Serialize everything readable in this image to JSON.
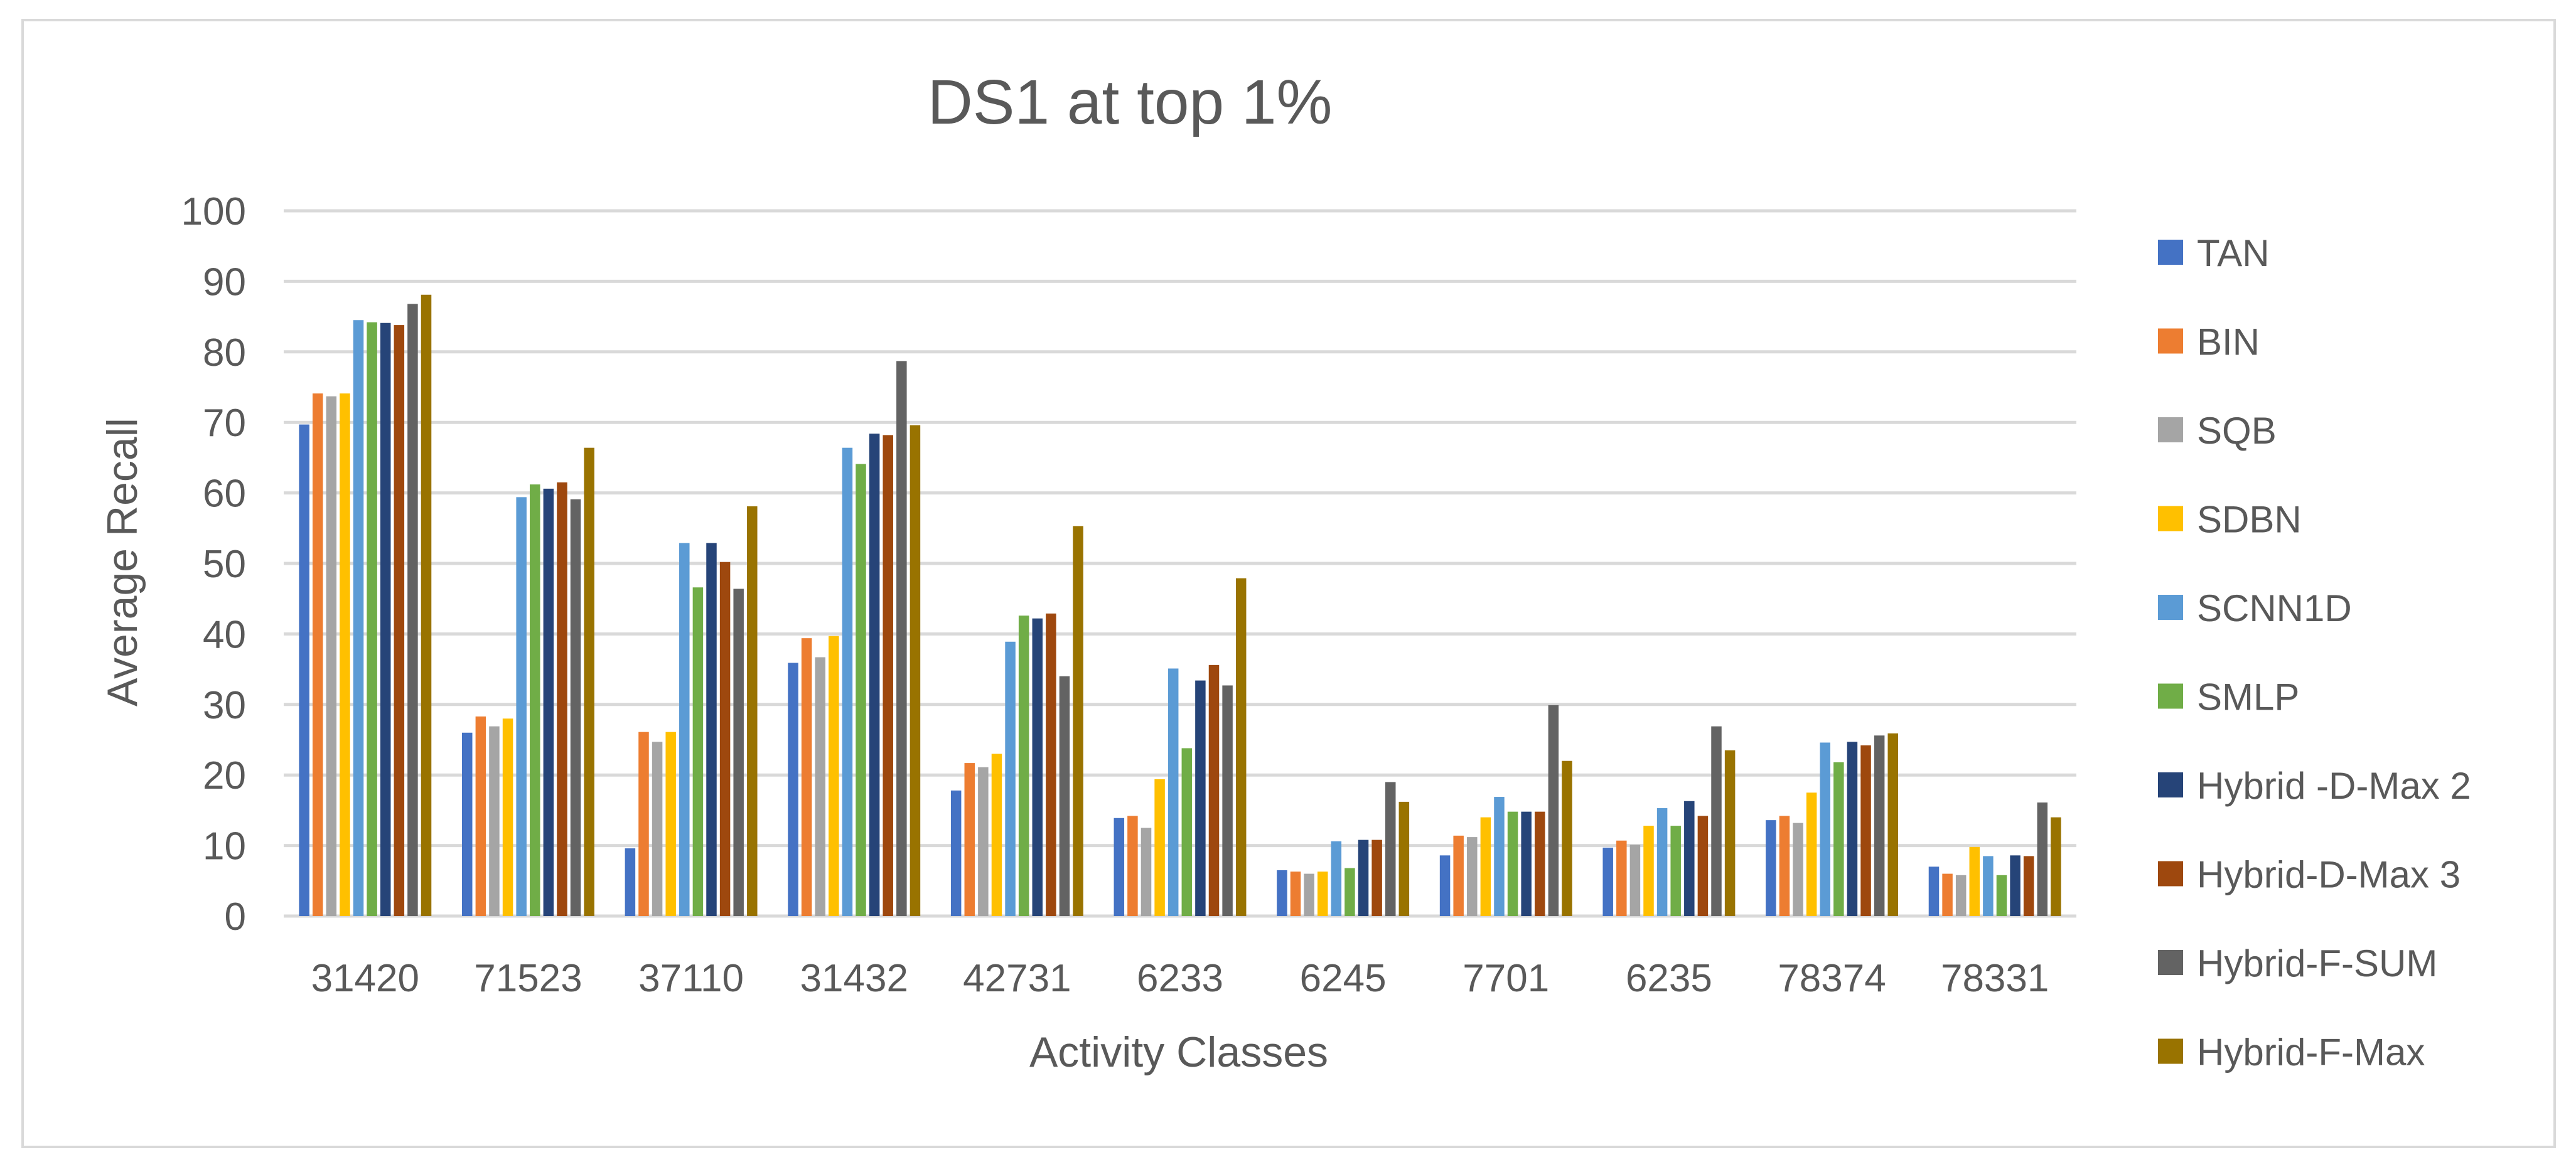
{
  "chart_data": {
    "type": "bar",
    "title": "DS1 at top 1%",
    "xlabel": "Activity  Classes",
    "ylabel": "Average Recall",
    "ylim": [
      0,
      100
    ],
    "yticks": [
      0,
      10,
      20,
      30,
      40,
      50,
      60,
      70,
      80,
      90,
      100
    ],
    "grid": true,
    "legend_position": "right",
    "categories": [
      "31420",
      "71523",
      "37110",
      "31432",
      "42731",
      "6233",
      "6245",
      "7701",
      "6235",
      "78374",
      "78331"
    ],
    "series": [
      {
        "name": "TAN",
        "color": "#4472C4",
        "values": [
          69.7,
          26.0,
          9.6,
          35.9,
          17.8,
          13.9,
          6.5,
          8.6,
          9.7,
          13.6,
          7.0
        ]
      },
      {
        "name": "BIN",
        "color": "#ED7D31",
        "values": [
          74.1,
          28.3,
          26.1,
          39.4,
          21.7,
          14.2,
          6.3,
          11.4,
          10.7,
          14.2,
          6.0
        ]
      },
      {
        "name": "SQB",
        "color": "#A5A5A5",
        "values": [
          73.7,
          26.9,
          24.7,
          36.7,
          21.1,
          12.5,
          6.0,
          11.2,
          10.1,
          13.2,
          5.8
        ]
      },
      {
        "name": "SDBN",
        "color": "#FFC000",
        "values": [
          74.1,
          28.0,
          26.1,
          39.7,
          23.0,
          19.4,
          6.3,
          14.0,
          12.8,
          17.5,
          9.8
        ]
      },
      {
        "name": "SCNN1D",
        "color": "#5B9BD5",
        "values": [
          84.5,
          59.4,
          52.9,
          66.4,
          38.9,
          35.1,
          10.6,
          16.9,
          15.3,
          24.6,
          8.5
        ]
      },
      {
        "name": "SMLP",
        "color": "#70AD47",
        "values": [
          84.2,
          61.2,
          46.6,
          64.1,
          42.6,
          23.8,
          6.8,
          14.8,
          12.8,
          21.8,
          5.8
        ]
      },
      {
        "name": "Hybrid -D-Max 2",
        "color": "#264478",
        "values": [
          84.1,
          60.6,
          52.9,
          68.4,
          42.2,
          33.4,
          10.8,
          14.8,
          16.3,
          24.7,
          8.6
        ]
      },
      {
        "name": "Hybrid-D-Max 3",
        "color": "#9E480E",
        "values": [
          83.8,
          61.5,
          50.2,
          68.2,
          42.9,
          35.6,
          10.8,
          14.8,
          14.2,
          24.2,
          8.5
        ]
      },
      {
        "name": "Hybrid-F-SUM",
        "color": "#636363",
        "values": [
          86.8,
          59.1,
          46.4,
          78.7,
          34.0,
          32.7,
          19.0,
          29.9,
          26.9,
          25.6,
          16.1
        ]
      },
      {
        "name": "Hybrid-F-Max",
        "color": "#997300",
        "values": [
          88.1,
          66.4,
          58.1,
          69.6,
          55.3,
          47.9,
          16.2,
          22.0,
          23.5,
          25.9,
          14.0
        ]
      }
    ]
  }
}
